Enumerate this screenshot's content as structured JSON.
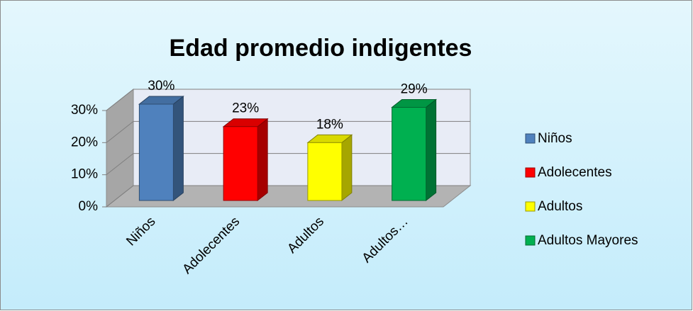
{
  "chart_data": {
    "type": "bar3d",
    "title": "Edad promedio indigentes",
    "categories": [
      "Niños",
      "Adolecentes",
      "Adultos",
      "Adultos…"
    ],
    "values": [
      30,
      23,
      18,
      29
    ],
    "value_labels": [
      "30%",
      "23%",
      "18%",
      "29%"
    ],
    "colors": [
      "#4f81bd",
      "#ff0000",
      "#ffff00",
      "#00b050"
    ],
    "legend": [
      "Niños",
      "Adolecentes",
      "Adultos",
      "Adultos Mayores"
    ],
    "ylim": [
      0,
      30
    ],
    "yticks": [
      {
        "value": 0,
        "label": "0%"
      },
      {
        "value": 10,
        "label": "10%"
      },
      {
        "value": 20,
        "label": "20%"
      },
      {
        "value": 30,
        "label": "30%"
      }
    ],
    "grid": true
  }
}
